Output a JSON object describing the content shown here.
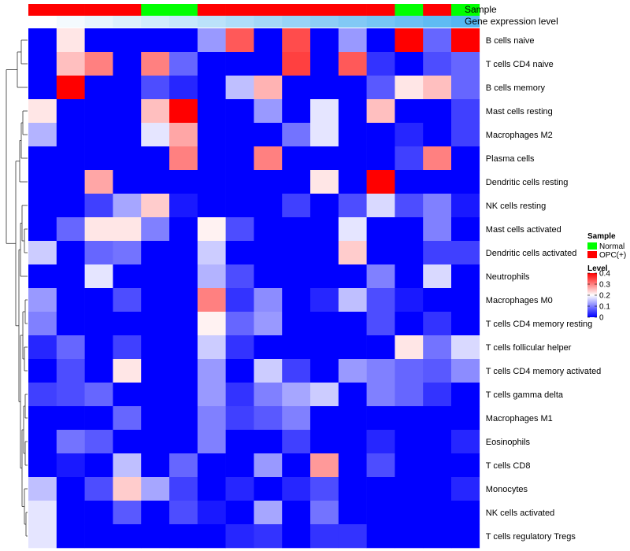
{
  "chart_data": {
    "type": "heatmap",
    "title": "",
    "annotation_tracks": [
      {
        "name": "Sample",
        "values": [
          "OPC(+)",
          "OPC(+)",
          "OPC(+)",
          "OPC(+)",
          "Normal",
          "Normal",
          "OPC(+)",
          "OPC(+)",
          "OPC(+)",
          "OPC(+)",
          "OPC(+)",
          "OPC(+)",
          "OPC(+)",
          "Normal",
          "OPC(+)",
          "Normal"
        ]
      },
      {
        "name": "Gene expression level",
        "values": [
          0.0,
          0.02,
          0.04,
          0.06,
          0.08,
          0.1,
          0.12,
          0.14,
          0.16,
          0.18,
          0.2,
          0.22,
          0.24,
          0.26,
          0.28,
          0.3
        ]
      }
    ],
    "columns": 16,
    "rows": [
      "B cells naive",
      "T cells CD4 naive",
      "B cells memory",
      "Mast cells resting",
      "Macrophages M2",
      "Plasma cells",
      "Dendritic cells resting",
      "NK cells resting",
      "Mast cells activated",
      "Dendritic cells activated",
      "Neutrophils",
      "Macrophages M0",
      "T cells CD4 memory resting",
      "T cells follicular helper",
      "T cells CD4 memory activated",
      "T cells gamma delta",
      "Macrophages M1",
      "Eosinophils",
      "T cells CD8",
      "Monocytes",
      "NK cells activated",
      "T cells regulatory  Tregs"
    ],
    "values": [
      [
        0,
        0.22,
        0,
        0,
        0,
        0,
        0.12,
        0.33,
        0,
        0.34,
        0,
        0.12,
        0,
        0.4,
        0.08,
        0.4
      ],
      [
        0,
        0.25,
        0.3,
        0,
        0.3,
        0.08,
        0,
        0,
        0,
        0.35,
        0,
        0.33,
        0.04,
        0,
        0.06,
        0.08
      ],
      [
        0,
        0.4,
        0,
        0,
        0.06,
        0.03,
        0,
        0.15,
        0.26,
        0,
        0,
        0,
        0.07,
        0.22,
        0.25,
        0.08
      ],
      [
        0.22,
        0,
        0,
        0,
        0.25,
        0.4,
        0,
        0,
        0.12,
        0,
        0.18,
        0,
        0.25,
        0,
        0,
        0.05
      ],
      [
        0.14,
        0,
        0,
        0,
        0.18,
        0.27,
        0,
        0,
        0,
        0.09,
        0.18,
        0,
        0,
        0.03,
        0,
        0.05
      ],
      [
        0,
        0,
        0,
        0,
        0,
        0.3,
        0,
        0,
        0.3,
        0,
        0,
        0,
        0,
        0.05,
        0.3,
        0
      ],
      [
        0,
        0,
        0.27,
        0,
        0,
        0,
        0,
        0,
        0,
        0,
        0.22,
        0,
        0.4,
        0,
        0,
        0
      ],
      [
        0,
        0,
        0.05,
        0.13,
        0.24,
        0.02,
        0,
        0,
        0,
        0.05,
        0,
        0.06,
        0.17,
        0.06,
        0.1,
        0.02
      ],
      [
        0,
        0.08,
        0.22,
        0.22,
        0.1,
        0,
        0.21,
        0.06,
        0,
        0,
        0,
        0.18,
        0,
        0,
        0.1,
        0
      ],
      [
        0.16,
        0,
        0.08,
        0.09,
        0,
        0,
        0.16,
        0,
        0,
        0,
        0,
        0.24,
        0,
        0,
        0.05,
        0.05
      ],
      [
        0,
        0,
        0.18,
        0,
        0,
        0,
        0.14,
        0.06,
        0,
        0,
        0,
        0,
        0.1,
        0,
        0.17,
        0
      ],
      [
        0.12,
        0,
        0,
        0.06,
        0,
        0,
        0.3,
        0.04,
        0.11,
        0,
        0.03,
        0.15,
        0.06,
        0.02,
        0,
        0
      ],
      [
        0.1,
        0,
        0,
        0,
        0,
        0,
        0.21,
        0.08,
        0.12,
        0,
        0,
        0,
        0.06,
        0,
        0.04,
        0
      ],
      [
        0.03,
        0.08,
        0,
        0.05,
        0,
        0,
        0.16,
        0.04,
        0,
        0,
        0,
        0,
        0,
        0.22,
        0.09,
        0.17
      ],
      [
        0,
        0.06,
        0,
        0.22,
        0,
        0,
        0.12,
        0,
        0.16,
        0.05,
        0,
        0.12,
        0.1,
        0.08,
        0.07,
        0.11
      ],
      [
        0.05,
        0.06,
        0.08,
        0,
        0,
        0,
        0.12,
        0.04,
        0.1,
        0.13,
        0.16,
        0,
        0.1,
        0.08,
        0.04,
        0
      ],
      [
        0,
        0,
        0,
        0.08,
        0,
        0,
        0.1,
        0.05,
        0.07,
        0.1,
        0,
        0,
        0,
        0,
        0,
        0
      ],
      [
        0,
        0.09,
        0.07,
        0,
        0,
        0,
        0.1,
        0,
        0,
        0.05,
        0,
        0,
        0.03,
        0,
        0,
        0.03
      ],
      [
        0,
        0.02,
        0,
        0.15,
        0,
        0.08,
        0,
        0,
        0.12,
        0,
        0.28,
        0,
        0.06,
        0,
        0,
        0
      ],
      [
        0.15,
        0,
        0.06,
        0.24,
        0.13,
        0.05,
        0,
        0.03,
        0,
        0.03,
        0.06,
        0,
        0,
        0,
        0,
        0.03
      ],
      [
        0.18,
        0,
        0,
        0.07,
        0,
        0.06,
        0.02,
        0,
        0.13,
        0,
        0.09,
        0,
        0,
        0,
        0,
        0
      ],
      [
        0.18,
        0,
        0,
        0,
        0,
        0,
        0,
        0.03,
        0.04,
        0,
        0.04,
        0.04,
        0,
        0,
        0,
        0
      ]
    ],
    "color_scale": {
      "min": 0,
      "mid": 0.2,
      "max": 0.4,
      "low": "#0000ff",
      "mid_color": "#ffffff",
      "high": "#ff0000"
    },
    "legend": {
      "position": "right",
      "sample_title": "Sample",
      "sample_items": [
        {
          "label": "Normal",
          "color": "#00ff00"
        },
        {
          "label": "OPC(+)",
          "color": "#ff0000"
        }
      ],
      "level_title": "Level",
      "level_ticks": [
        "0.4",
        "0.3",
        "0.2",
        "0.1",
        "0"
      ]
    },
    "row_dendrogram": true
  },
  "colors": {
    "normal": "#00ff00",
    "opc": "#ff0000",
    "expr_low": "#ffffff",
    "expr_high": "#54b6f2"
  }
}
